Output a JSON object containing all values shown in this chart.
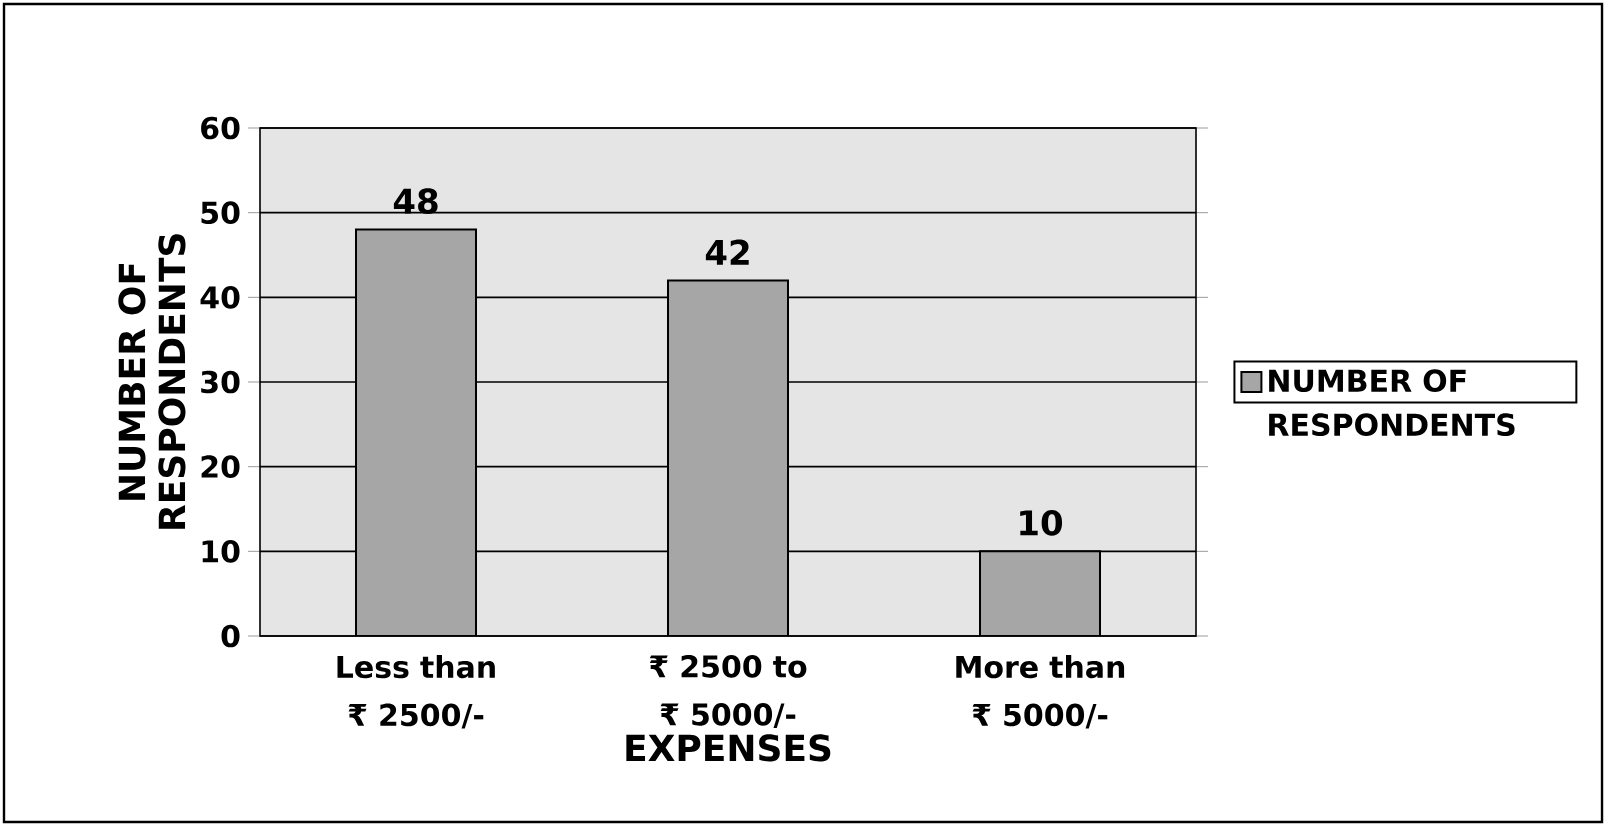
{
  "chart_data": {
    "type": "bar",
    "xlabel": "EXPENSES",
    "ylabel": "NUMBER OF RESPONDENTS",
    "categories": [
      "Less than ₹ 2500/-",
      "₹ 2500 to ₹ 5000/-",
      "More than ₹ 5000/-"
    ],
    "series": [
      {
        "name": "NUMBER OF RESPONDENTS",
        "color": "#a6a6a6",
        "values": [
          48,
          42,
          10
        ]
      }
    ],
    "ylim": [
      0,
      60
    ],
    "yticks": [
      0,
      10,
      20,
      30,
      40,
      50,
      60
    ],
    "grid": "y",
    "legend": "right",
    "data_labels": true
  }
}
